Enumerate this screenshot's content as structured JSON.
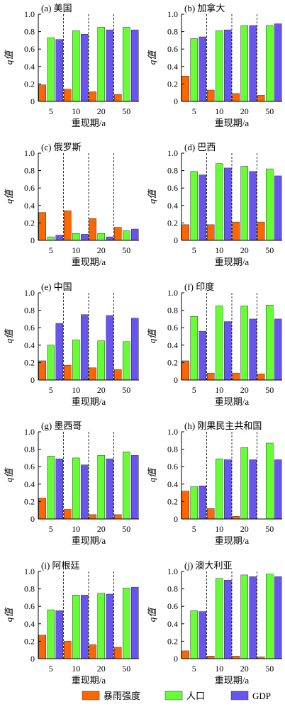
{
  "chart_data": {
    "type": "bar",
    "categories": [
      "5",
      "10",
      "20",
      "50"
    ],
    "xlabel": "重现期/a",
    "ylabel": "q值",
    "ylim": [
      0,
      1.0
    ],
    "yticks": [
      "0",
      "0.2",
      "0.4",
      "0.6",
      "0.8",
      "1.0"
    ],
    "legend": {
      "placement": "bottom",
      "entries": [
        {
          "name": "暴雨强度",
          "color": "#ff6600"
        },
        {
          "name": "人口",
          "color": "#66ff33"
        },
        {
          "name": "GDP",
          "color": "#6655ee"
        }
      ]
    },
    "panels": [
      {
        "title": "(a) 美国",
        "series": [
          {
            "name": "暴雨强度",
            "values": [
              0.19,
              0.14,
              0.11,
              0.08
            ]
          },
          {
            "name": "人口",
            "values": [
              0.73,
              0.81,
              0.85,
              0.85
            ]
          },
          {
            "name": "GDP",
            "values": [
              0.71,
              0.77,
              0.82,
              0.82
            ]
          }
        ]
      },
      {
        "title": "(b) 加拿大",
        "series": [
          {
            "name": "暴雨强度",
            "values": [
              0.29,
              0.13,
              0.09,
              0.07
            ]
          },
          {
            "name": "人口",
            "values": [
              0.72,
              0.81,
              0.87,
              0.87
            ]
          },
          {
            "name": "GDP",
            "values": [
              0.74,
              0.82,
              0.87,
              0.89
            ]
          }
        ]
      },
      {
        "title": "(c) 俄罗斯",
        "series": [
          {
            "name": "暴雨强度",
            "values": [
              0.32,
              0.34,
              0.25,
              0.15
            ]
          },
          {
            "name": "人口",
            "values": [
              0.04,
              0.08,
              0.08,
              0.11
            ]
          },
          {
            "name": "GDP",
            "values": [
              0.06,
              0.07,
              0.04,
              0.13
            ]
          }
        ]
      },
      {
        "title": "(d) 巴西",
        "series": [
          {
            "name": "暴雨强度",
            "values": [
              0.18,
              0.18,
              0.21,
              0.21
            ]
          },
          {
            "name": "人口",
            "values": [
              0.79,
              0.88,
              0.85,
              0.82
            ]
          },
          {
            "name": "GDP",
            "values": [
              0.75,
              0.83,
              0.79,
              0.74
            ]
          }
        ]
      },
      {
        "title": "(e) 中国",
        "series": [
          {
            "name": "暴雨强度",
            "values": [
              0.22,
              0.17,
              0.14,
              0.12
            ]
          },
          {
            "name": "人口",
            "values": [
              0.4,
              0.46,
              0.45,
              0.44
            ]
          },
          {
            "name": "GDP",
            "values": [
              0.65,
              0.75,
              0.74,
              0.71
            ]
          }
        ]
      },
      {
        "title": "(f) 印度",
        "series": [
          {
            "name": "暴雨强度",
            "values": [
              0.22,
              0.08,
              0.08,
              0.07
            ]
          },
          {
            "name": "人口",
            "values": [
              0.73,
              0.85,
              0.85,
              0.86
            ]
          },
          {
            "name": "GDP",
            "values": [
              0.56,
              0.67,
              0.7,
              0.7
            ]
          }
        ]
      },
      {
        "title": "(g) 墨西哥",
        "series": [
          {
            "name": "暴雨强度",
            "values": [
              0.24,
              0.11,
              0.05,
              0.05
            ]
          },
          {
            "name": "人口",
            "values": [
              0.72,
              0.7,
              0.73,
              0.77
            ]
          },
          {
            "name": "GDP",
            "values": [
              0.69,
              0.62,
              0.69,
              0.73
            ]
          }
        ]
      },
      {
        "title": "(h) 刚果民主共和国",
        "series": [
          {
            "name": "暴雨强度",
            "values": [
              0.32,
              0.12,
              0.03,
              0.0
            ]
          },
          {
            "name": "人口",
            "values": [
              0.37,
              0.69,
              0.82,
              0.87
            ]
          },
          {
            "name": "GDP",
            "values": [
              0.38,
              0.68,
              0.68,
              0.68
            ]
          }
        ]
      },
      {
        "title": "(i) 阿根廷",
        "series": [
          {
            "name": "暴雨强度",
            "values": [
              0.27,
              0.2,
              0.16,
              0.13
            ]
          },
          {
            "name": "人口",
            "values": [
              0.56,
              0.73,
              0.75,
              0.81
            ]
          },
          {
            "name": "GDP",
            "values": [
              0.55,
              0.73,
              0.74,
              0.82
            ]
          }
        ]
      },
      {
        "title": "(j) 澳大利亚",
        "series": [
          {
            "name": "暴雨强度",
            "values": [
              0.09,
              0.03,
              0.03,
              0.02
            ]
          },
          {
            "name": "人口",
            "values": [
              0.55,
              0.92,
              0.96,
              0.97
            ]
          },
          {
            "name": "GDP",
            "values": [
              0.54,
              0.9,
              0.94,
              0.94
            ]
          }
        ]
      }
    ]
  }
}
